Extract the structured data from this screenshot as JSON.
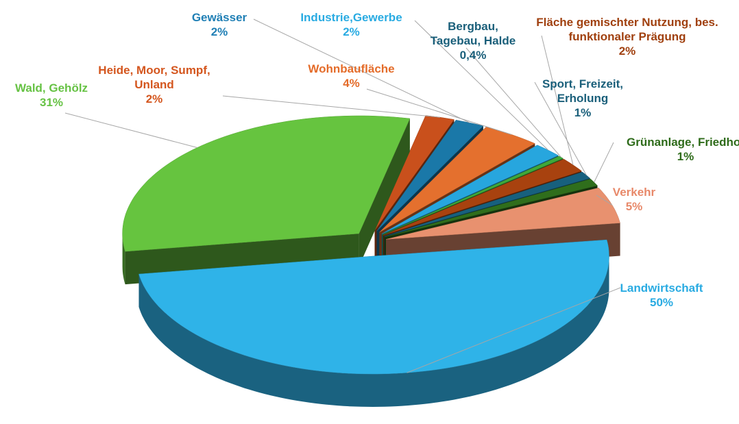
{
  "chart_data": {
    "type": "pie",
    "categories": [
      "Landwirtschaft",
      "Wald, Gehölz",
      "Heide, Moor, Sumpf, Unland",
      "Gewässer",
      "Wohnbaufläche",
      "Industrie,Gewerbe",
      "Bergbau, Tagebau, Halde",
      "Fläche gemischter Nutzung, bes. funktionaler Prägung",
      "Sport, Freizeit, Erholung",
      "Grünanlage, Friedhof",
      "Verkehr"
    ],
    "values": [
      50,
      31,
      2,
      2,
      4,
      2,
      0.4,
      2,
      1,
      1,
      5
    ],
    "value_labels": [
      "50%",
      "31%",
      "2%",
      "2%",
      "4%",
      "2%",
      "0,4%",
      "2%",
      "1%",
      "1%",
      "5%"
    ],
    "colors": [
      "#2fb3e8",
      "#66c43f",
      "#c9501c",
      "#1a78a8",
      "#e4702e",
      "#27a6de",
      "#3fa83a",
      "#a8420f",
      "#17607e",
      "#2f6e1c",
      "#e8916f"
    ],
    "label_colors": [
      "#29abe2",
      "#66c244",
      "#d4561e",
      "#1f7fb5",
      "#e46c2a",
      "#29abe2",
      "#1a5f7a",
      "#a0400f",
      "#1a5f7a",
      "#2e6b1a",
      "#e8896a"
    ]
  }
}
